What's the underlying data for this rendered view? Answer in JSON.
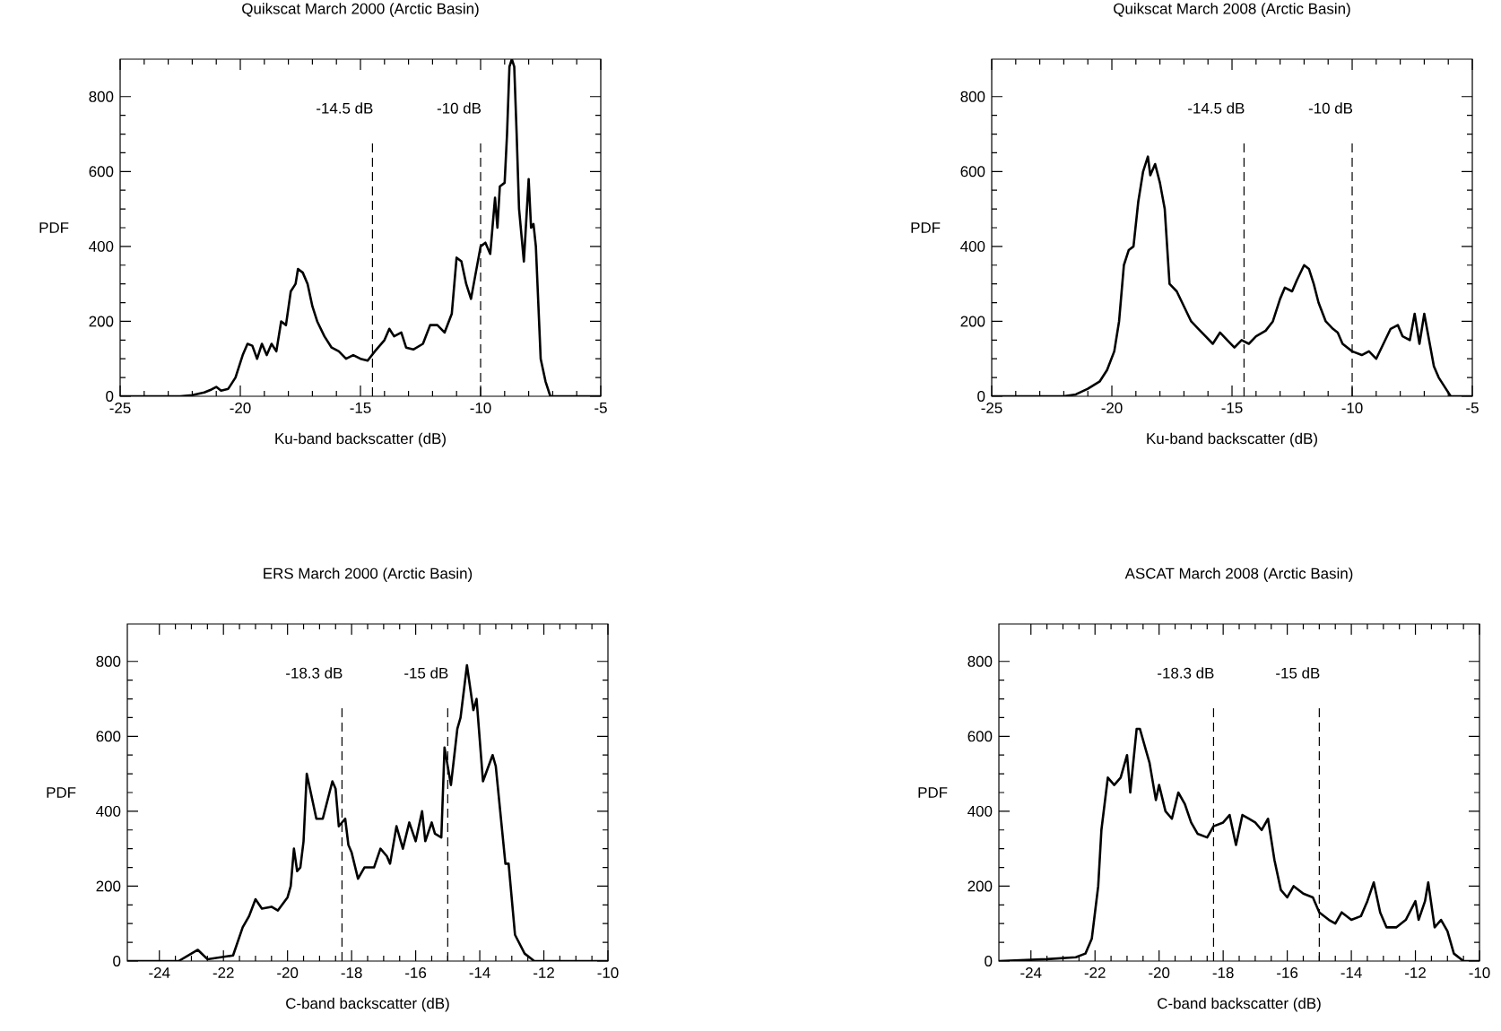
{
  "chart_data": [
    {
      "type": "line",
      "title": "Quikscat March 2000 (Arctic Basin)",
      "xlabel": "Ku-band backscatter (dB)",
      "ylabel": "PDF",
      "xlim": [
        -25,
        -5
      ],
      "ylim": [
        0,
        900
      ],
      "xticks": [
        -25,
        -20,
        -15,
        -10,
        -5
      ],
      "yticks": [
        0,
        200,
        400,
        600,
        800
      ],
      "line_style": "solid",
      "series": [
        {
          "color": "#000000",
          "x": [
            -25,
            -22.5,
            -22,
            -21.5,
            -21.2,
            -21,
            -20.8,
            -20.5,
            -20.2,
            -19.9,
            -19.7,
            -19.5,
            -19.3,
            -19.1,
            -18.9,
            -18.7,
            -18.5,
            -18.3,
            -18.1,
            -17.9,
            -17.7,
            -17.6,
            -17.4,
            -17.2,
            -17.0,
            -16.8,
            -16.5,
            -16.2,
            -15.9,
            -15.6,
            -15.3,
            -15.0,
            -14.7,
            -14.4,
            -14.0,
            -13.8,
            -13.6,
            -13.3,
            -13.1,
            -12.8,
            -12.4,
            -12.1,
            -11.8,
            -11.5,
            -11.2,
            -11.0,
            -10.8,
            -10.6,
            -10.4,
            -10.2,
            -10.0,
            -9.8,
            -9.6,
            -9.4,
            -9.3,
            -9.2,
            -9.0,
            -8.9,
            -8.8,
            -8.7,
            -8.6,
            -8.5,
            -8.4,
            -8.2,
            -8.0,
            -7.9,
            -7.8,
            -7.7,
            -7.5,
            -7.3,
            -7.1,
            -5
          ],
          "values": [
            0,
            0,
            3,
            10,
            18,
            25,
            15,
            20,
            50,
            110,
            140,
            135,
            100,
            140,
            110,
            140,
            120,
            200,
            190,
            280,
            300,
            340,
            330,
            300,
            240,
            200,
            160,
            130,
            120,
            100,
            110,
            100,
            95,
            120,
            150,
            180,
            160,
            170,
            130,
            125,
            140,
            190,
            190,
            170,
            220,
            370,
            360,
            300,
            260,
            330,
            400,
            410,
            380,
            530,
            450,
            560,
            570,
            700,
            880,
            900,
            880,
            700,
            500,
            360,
            580,
            450,
            460,
            400,
            100,
            40,
            0,
            0
          ]
        }
      ],
      "ref_lines": [
        {
          "axis": "x",
          "value": -14.5,
          "label": "-14.5 dB",
          "line_style": "dashed"
        },
        {
          "axis": "x",
          "value": -10,
          "label": "-10 dB",
          "line_style": "dashed"
        }
      ]
    },
    {
      "type": "line",
      "title": "Quikscat March 2008 (Arctic Basin)",
      "xlabel": "Ku-band backscatter (dB)",
      "ylabel": "PDF",
      "xlim": [
        -25,
        -5
      ],
      "ylim": [
        0,
        900
      ],
      "xticks": [
        -25,
        -20,
        -15,
        -10,
        -5
      ],
      "yticks": [
        0,
        200,
        400,
        600,
        800
      ],
      "line_style": "solid",
      "series": [
        {
          "color": "#000000",
          "x": [
            -25,
            -22,
            -21.5,
            -21,
            -20.5,
            -20.2,
            -19.9,
            -19.7,
            -19.5,
            -19.3,
            -19.1,
            -18.9,
            -18.7,
            -18.5,
            -18.4,
            -18.2,
            -18.0,
            -17.8,
            -17.6,
            -17.3,
            -17.0,
            -16.7,
            -16.4,
            -16.1,
            -15.8,
            -15.5,
            -15.2,
            -14.9,
            -14.6,
            -14.3,
            -14.0,
            -13.6,
            -13.3,
            -13.0,
            -12.8,
            -12.5,
            -12.3,
            -12.0,
            -11.8,
            -11.6,
            -11.4,
            -11.1,
            -10.8,
            -10.6,
            -10.4,
            -10.0,
            -9.6,
            -9.3,
            -9.0,
            -8.7,
            -8.4,
            -8.1,
            -7.9,
            -7.6,
            -7.4,
            -7.2,
            -7.0,
            -6.8,
            -6.6,
            -6.4,
            -6.1,
            -5.9,
            -5
          ],
          "values": [
            0,
            0,
            5,
            20,
            40,
            70,
            120,
            200,
            350,
            390,
            400,
            520,
            600,
            640,
            590,
            620,
            570,
            500,
            300,
            280,
            240,
            200,
            180,
            160,
            140,
            170,
            150,
            130,
            150,
            140,
            160,
            175,
            200,
            260,
            290,
            280,
            310,
            350,
            340,
            300,
            250,
            200,
            180,
            170,
            140,
            120,
            110,
            120,
            100,
            140,
            180,
            190,
            160,
            150,
            220,
            140,
            220,
            150,
            80,
            50,
            20,
            0,
            0
          ]
        }
      ],
      "ref_lines": [
        {
          "axis": "x",
          "value": -14.5,
          "label": "-14.5 dB",
          "line_style": "dashed"
        },
        {
          "axis": "x",
          "value": -10,
          "label": "-10 dB",
          "line_style": "dashed"
        }
      ]
    },
    {
      "type": "line",
      "title": "ERS March 2000 (Arctic Basin)",
      "xlabel": "C-band backscatter (dB)",
      "ylabel": "PDF",
      "xlim": [
        -25,
        -10
      ],
      "ylim": [
        0,
        900
      ],
      "xticks": [
        -24,
        -22,
        -20,
        -18,
        -16,
        -14,
        -12,
        -10
      ],
      "yticks": [
        0,
        200,
        400,
        600,
        800
      ],
      "line_style": "solid",
      "series": [
        {
          "color": "#000000",
          "x": [
            -25,
            -23.4,
            -23.0,
            -22.8,
            -22.5,
            -21.7,
            -21.4,
            -21.2,
            -21.0,
            -20.8,
            -20.5,
            -20.3,
            -20.0,
            -19.9,
            -19.8,
            -19.7,
            -19.6,
            -19.5,
            -19.4,
            -19.3,
            -19.1,
            -18.9,
            -18.6,
            -18.5,
            -18.4,
            -18.2,
            -18.1,
            -18.0,
            -17.8,
            -17.6,
            -17.3,
            -17.1,
            -16.9,
            -16.8,
            -16.6,
            -16.4,
            -16.2,
            -16.0,
            -15.8,
            -15.7,
            -15.5,
            -15.4,
            -15.2,
            -15.1,
            -14.9,
            -14.7,
            -14.6,
            -14.4,
            -14.2,
            -14.1,
            -13.9,
            -13.6,
            -13.5,
            -13.2,
            -13.1,
            -12.9,
            -12.6,
            -12.3,
            -10
          ],
          "values": [
            0,
            0,
            20,
            30,
            5,
            15,
            90,
            120,
            165,
            140,
            145,
            135,
            170,
            200,
            300,
            240,
            250,
            320,
            500,
            460,
            380,
            380,
            480,
            460,
            360,
            380,
            310,
            290,
            220,
            250,
            250,
            300,
            280,
            260,
            360,
            300,
            370,
            320,
            400,
            320,
            370,
            340,
            330,
            570,
            470,
            620,
            650,
            790,
            670,
            700,
            480,
            550,
            520,
            260,
            260,
            70,
            20,
            0,
            0
          ]
        }
      ],
      "ref_lines": [
        {
          "axis": "x",
          "value": -18.3,
          "label": "-18.3 dB",
          "line_style": "dashed"
        },
        {
          "axis": "x",
          "value": -15,
          "label": "-15 dB",
          "line_style": "dashed"
        }
      ]
    },
    {
      "type": "line",
      "title": "ASCAT March 2008 (Arctic Basin)",
      "xlabel": "C-band backscatter (dB)",
      "ylabel": "PDF",
      "xlim": [
        -25,
        -10
      ],
      "ylim": [
        0,
        900
      ],
      "xticks": [
        -24,
        -22,
        -20,
        -18,
        -16,
        -14,
        -12,
        -10
      ],
      "yticks": [
        0,
        200,
        400,
        600,
        800
      ],
      "line_style": "solid",
      "series": [
        {
          "color": "#000000",
          "x": [
            -25,
            -23.5,
            -22.6,
            -22.3,
            -22.1,
            -21.9,
            -21.8,
            -21.6,
            -21.4,
            -21.2,
            -21.0,
            -20.9,
            -20.7,
            -20.6,
            -20.4,
            -20.3,
            -20.1,
            -20.0,
            -19.8,
            -19.6,
            -19.4,
            -19.2,
            -19.0,
            -18.8,
            -18.5,
            -18.3,
            -18.0,
            -17.8,
            -17.6,
            -17.4,
            -17.2,
            -17.0,
            -16.8,
            -16.6,
            -16.4,
            -16.2,
            -16.0,
            -15.8,
            -15.5,
            -15.2,
            -15.0,
            -14.7,
            -14.5,
            -14.3,
            -14.0,
            -13.7,
            -13.5,
            -13.3,
            -13.1,
            -12.9,
            -12.6,
            -12.3,
            -12.0,
            -11.9,
            -11.7,
            -11.6,
            -11.4,
            -11.2,
            -11.0,
            -10.8,
            -10.5,
            -10
          ],
          "values": [
            0,
            5,
            10,
            20,
            60,
            200,
            350,
            490,
            470,
            490,
            550,
            450,
            620,
            620,
            560,
            530,
            430,
            470,
            400,
            380,
            450,
            420,
            370,
            340,
            330,
            360,
            370,
            390,
            310,
            390,
            380,
            370,
            350,
            380,
            270,
            190,
            170,
            200,
            180,
            170,
            130,
            110,
            100,
            130,
            110,
            120,
            160,
            210,
            130,
            90,
            90,
            110,
            160,
            110,
            160,
            210,
            90,
            110,
            80,
            20,
            0,
            0
          ]
        }
      ],
      "ref_lines": [
        {
          "axis": "x",
          "value": -18.3,
          "label": "-18.3 dB",
          "line_style": "dashed"
        },
        {
          "axis": "x",
          "value": -15,
          "label": "-15 dB",
          "line_style": "dashed"
        }
      ]
    }
  ]
}
